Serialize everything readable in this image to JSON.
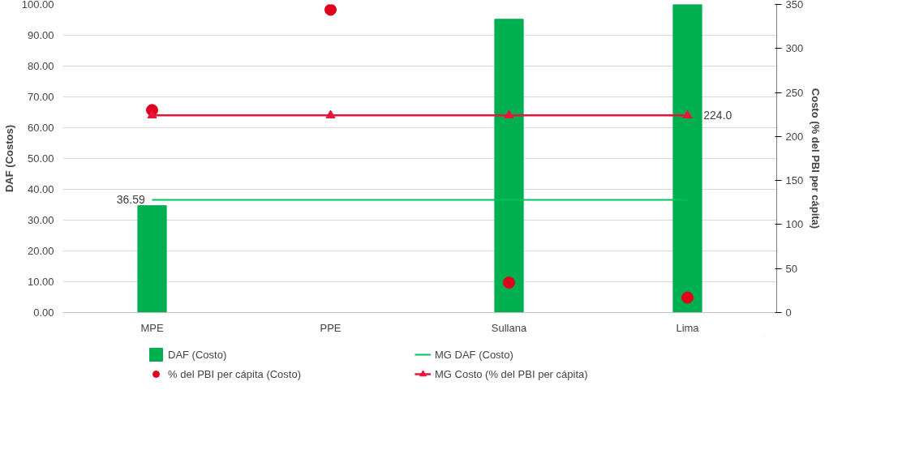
{
  "chart_data": {
    "type": "bar",
    "ylabel": "DAF (Costos)",
    "y2label": "Costo (% del PBI per cápita)",
    "categories": [
      "MPE",
      "PPE",
      "Sullana",
      "Lima"
    ],
    "series": [
      {
        "name": "DAF (Costo)",
        "color": "#00b050",
        "values": [
          34.7,
          null,
          95.2,
          100
        ]
      },
      {
        "name": "MG DAF (Costo)",
        "type": "line",
        "color": "#00c060",
        "marker": "none",
        "values": [
          36.59,
          36.59,
          36.59,
          36.59
        ],
        "value_labels": [
          "36.59",
          null,
          null,
          null
        ]
      },
      {
        "name": "% del PBI per cápita (Costo)",
        "type": "scatter",
        "axis": "y2",
        "color": "#e0001b",
        "marker": "circle",
        "values": [
          230,
          344,
          34,
          17
        ]
      },
      {
        "name": "MG Costo (% del PBI per cápita)",
        "type": "line",
        "axis": "y2",
        "color": "#e8143c",
        "marker": "triangle",
        "values": [
          224.0,
          224.0,
          224.0,
          224.0
        ],
        "value_labels": [
          null,
          null,
          null,
          "224.0"
        ]
      }
    ],
    "ylim": [
      0,
      100
    ],
    "yticks": [
      {
        "value": 0,
        "label": "0.00"
      },
      {
        "value": 10,
        "label": "10.00"
      },
      {
        "value": 20,
        "label": "20.00"
      },
      {
        "value": 30,
        "label": "30.00"
      },
      {
        "value": 40,
        "label": "40.00"
      },
      {
        "value": 50,
        "label": "50.00"
      },
      {
        "value": 60,
        "label": "60.00"
      },
      {
        "value": 70,
        "label": "70.00"
      },
      {
        "value": 80,
        "label": "80.00"
      },
      {
        "value": 90,
        "label": "90.00"
      },
      {
        "value": 100,
        "label": "100.00"
      }
    ],
    "y2lim": [
      0,
      350
    ],
    "y2ticks": [
      0,
      50,
      100,
      150,
      200,
      250,
      300,
      350
    ],
    "grid": "y",
    "legend": "bottom"
  }
}
